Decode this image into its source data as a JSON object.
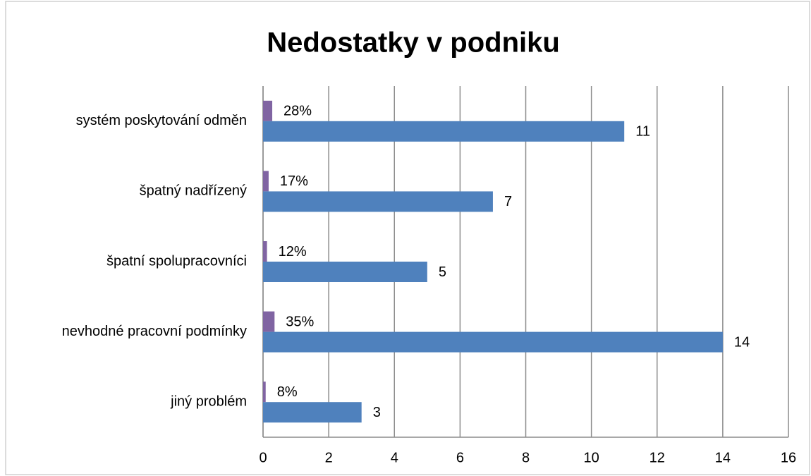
{
  "chart_data": {
    "type": "bar",
    "orientation": "horizontal",
    "title": "Nedostatky v podniku",
    "categories": [
      "systém poskytování odměn",
      "špatný nadřízený",
      "špatní spolupracovníci",
      "nevhodné pracovní podmínky",
      "jiný problém"
    ],
    "series": [
      {
        "color": "#8064a2",
        "values": [
          0.28,
          0.17,
          0.12,
          0.35,
          0.08
        ],
        "value_labels": [
          "28%",
          "17%",
          "12%",
          "35%",
          "8%"
        ]
      },
      {
        "color": "#4f81bd",
        "values": [
          11,
          7,
          5,
          14,
          3
        ]
      }
    ],
    "xlim": [
      0,
      16
    ],
    "xticks": [
      0,
      2,
      4,
      6,
      8,
      10,
      12,
      14,
      16
    ],
    "grid": true
  }
}
